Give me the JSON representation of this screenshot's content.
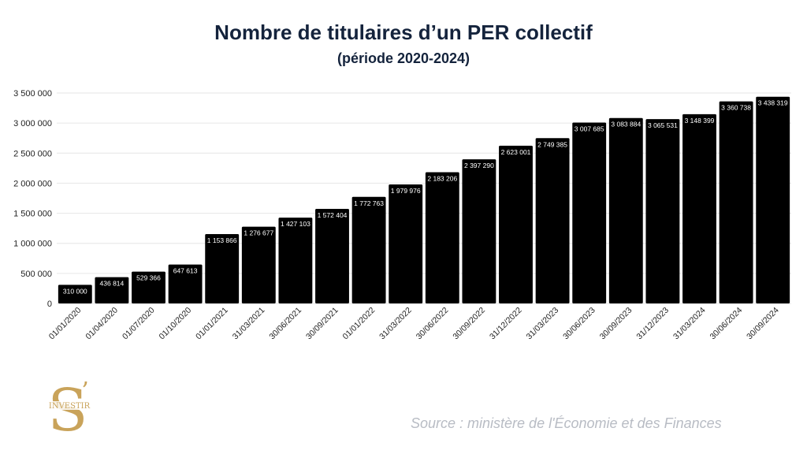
{
  "header": {
    "title": "Nombre de titulaires d’un PER collectif",
    "subtitle": "(période 2020-2024)"
  },
  "footer": {
    "source": "Source : ministère de l'Économie et des Finances"
  },
  "logo": {
    "letter": "S",
    "apostrophe": "’",
    "text": "INVESTIR",
    "color": "#c9a35a"
  },
  "colors": {
    "bar": "#000000",
    "grid": "#e6e6e6",
    "title": "#14233c",
    "tick": "#222222",
    "bar_label": "#ffffff"
  },
  "chart_data": {
    "type": "bar",
    "categories": [
      "01/01/2020",
      "01/04/2020",
      "01/07/2020",
      "01/10/2020",
      "01/01/2021",
      "31/03/2021",
      "30/06/2021",
      "30/09/2021",
      "01/01/2022",
      "31/03/2022",
      "30/06/2022",
      "30/09/2022",
      "31/12/2022",
      "31/03/2023",
      "30/06/2023",
      "30/09/2023",
      "31/12/2023",
      "31/03/2024",
      "30/06/2024",
      "30/09/2024"
    ],
    "values": [
      310000,
      436814,
      529366,
      647613,
      1153866,
      1276677,
      1427103,
      1572404,
      1772763,
      1979976,
      2183206,
      2397290,
      2623001,
      2749385,
      3007685,
      3083884,
      3065531,
      3148399,
      3360738,
      3438319
    ],
    "value_labels": [
      "310 000",
      "436 814",
      "529 366",
      "647 613",
      "1 153 866",
      "1 276 677",
      "1 427 103",
      "1 572 404",
      "1 772 763",
      "1 979 976",
      "2 183 206",
      "2 397 290",
      "2 623 001",
      "2 749 385",
      "3 007 685",
      "3 083 884",
      "3 065 531",
      "3 148 399",
      "3 360 738",
      "3 438 319"
    ],
    "y_ticks": [
      0,
      500000,
      1000000,
      1500000,
      2000000,
      2500000,
      3000000,
      3500000
    ],
    "y_tick_labels": [
      "0",
      "500 000",
      "1 000 000",
      "1 500 000",
      "2 000 000",
      "2 500 000",
      "3 000 000",
      "3 500 000"
    ],
    "ylim": [
      0,
      3500000
    ],
    "grid": true,
    "legend": "none"
  }
}
